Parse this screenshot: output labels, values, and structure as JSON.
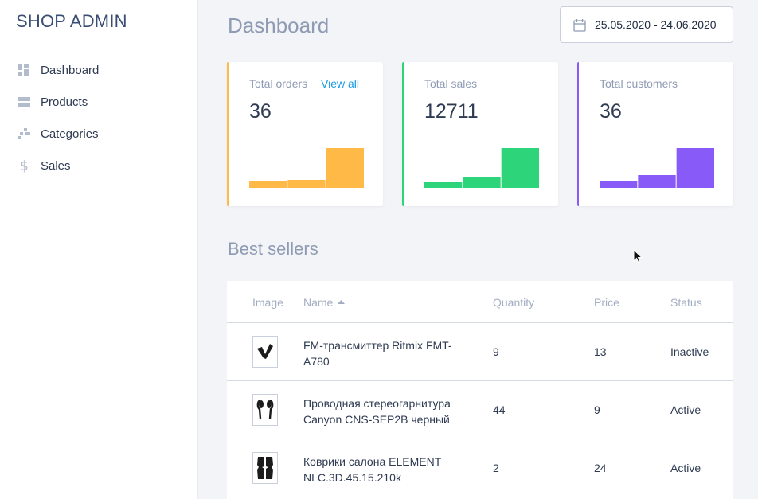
{
  "sidebar": {
    "brand": "SHOP ADMIN",
    "items": [
      {
        "label": "Dashboard",
        "icon": "dashboard-icon"
      },
      {
        "label": "Products",
        "icon": "products-icon"
      },
      {
        "label": "Categories",
        "icon": "categories-icon"
      },
      {
        "label": "Sales",
        "icon": "dollar-icon"
      }
    ]
  },
  "header": {
    "title": "Dashboard",
    "date_range": "25.05.2020 - 24.06.2020"
  },
  "cards": [
    {
      "title": "Total orders",
      "link": "View all",
      "value": "36",
      "color": "#ffb946",
      "bars": [
        8,
        10,
        50
      ]
    },
    {
      "title": "Total sales",
      "value": "12711",
      "color": "#2ed47a",
      "bars": [
        7,
        13,
        50
      ]
    },
    {
      "title": "Total customers",
      "value": "36",
      "color": "#885af8",
      "bars": [
        8,
        16,
        50
      ]
    }
  ],
  "best_sellers": {
    "title": "Best sellers",
    "columns": [
      "Image",
      "Name",
      "Quantity",
      "Price",
      "Status"
    ],
    "rows": [
      {
        "name": "FM-трансмиттер Ritmix FMT-A780",
        "quantity": "9",
        "price": "13",
        "status": "Inactive"
      },
      {
        "name": "Проводная стереогарнитура Canyon CNS-SEP2B черный",
        "quantity": "44",
        "price": "9",
        "status": "Active"
      },
      {
        "name": "Коврики салона ELEMENT NLC.3D.45.15.210k",
        "quantity": "2",
        "price": "24",
        "status": "Active"
      }
    ]
  }
}
